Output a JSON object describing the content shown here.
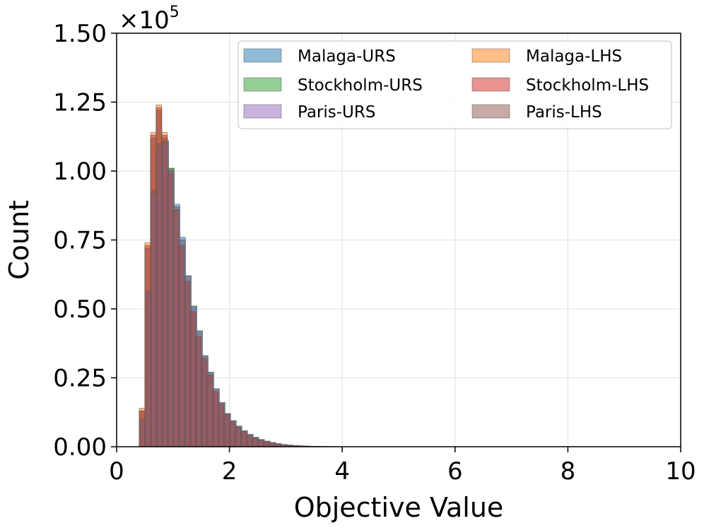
{
  "chart_data": {
    "type": "bar",
    "title": "",
    "xlabel": "Objective Value",
    "ylabel": "Count",
    "y_multiplier_base": "×10",
    "y_multiplier_exp": "5",
    "xlim": [
      0,
      10
    ],
    "ylim": [
      0,
      1.5
    ],
    "grid": true,
    "legend_position": "top-right",
    "x_ticks": [
      0,
      2,
      4,
      6,
      8,
      10
    ],
    "x_tick_labels": [
      "0",
      "2",
      "4",
      "6",
      "8",
      "10"
    ],
    "y_ticks": [
      0,
      0.25,
      0.5,
      0.75,
      1.0,
      1.25,
      1.5
    ],
    "y_tick_labels": [
      "0.00",
      "0.25",
      "0.50",
      "0.75",
      "1.00",
      "1.25",
      "1.50"
    ],
    "bin_width": 0.1,
    "series": [
      {
        "name": "Malaga-URS",
        "color": "#1f77b4",
        "offset": 0.02,
        "bin_starts": [
          0.4,
          0.5,
          0.6,
          0.7,
          0.8,
          0.9,
          1.0,
          1.1,
          1.2,
          1.3,
          1.4,
          1.5,
          1.6,
          1.7,
          1.8,
          1.9,
          2.0,
          2.1,
          2.2,
          2.3,
          2.4,
          2.5,
          2.6,
          2.7,
          2.8,
          2.9,
          3.0,
          3.1,
          3.2,
          3.3,
          3.4,
          3.5,
          3.6,
          3.7,
          3.8,
          3.9,
          4.0
        ],
        "values": [
          0.1,
          0.57,
          0.93,
          1.1,
          1.11,
          1.01,
          0.88,
          0.76,
          0.62,
          0.51,
          0.42,
          0.33,
          0.27,
          0.21,
          0.16,
          0.12,
          0.095,
          0.075,
          0.058,
          0.045,
          0.034,
          0.026,
          0.02,
          0.015,
          0.011,
          0.008,
          0.006,
          0.0045,
          0.0033,
          0.0024,
          0.0017,
          0.0012,
          0.0008,
          0.0005,
          0.0003,
          0.0002,
          0.0001
        ]
      },
      {
        "name": "Malaga-LHS",
        "color": "#ff7f0e",
        "offset": 0.0,
        "bin_starts": [
          0.4,
          0.5,
          0.6,
          0.7,
          0.8,
          0.9,
          1.0,
          1.1,
          1.2,
          1.3,
          1.4,
          1.5,
          1.6,
          1.7,
          1.8,
          1.9,
          2.0,
          2.1,
          2.2,
          2.3,
          2.4,
          2.5,
          2.6,
          2.7,
          2.8,
          2.9,
          3.0,
          3.1,
          3.2,
          3.3,
          3.4,
          3.5,
          3.6,
          3.7,
          3.8,
          3.9,
          4.0
        ],
        "values": [
          0.14,
          0.74,
          1.14,
          1.24,
          1.14,
          1.01,
          0.86,
          0.73,
          0.6,
          0.49,
          0.4,
          0.32,
          0.26,
          0.2,
          0.155,
          0.118,
          0.09,
          0.07,
          0.054,
          0.041,
          0.031,
          0.024,
          0.018,
          0.013,
          0.0095,
          0.007,
          0.005,
          0.0037,
          0.0027,
          0.0019,
          0.0013,
          0.0009,
          0.0006,
          0.0004,
          0.0003,
          0.0002,
          0.0001
        ]
      },
      {
        "name": "Stockholm-URS",
        "color": "#2ca02c",
        "offset": 0.02,
        "bin_starts": [
          0.4,
          0.5,
          0.6,
          0.7,
          0.8,
          0.9,
          1.0,
          1.1,
          1.2,
          1.3,
          1.4,
          1.5,
          1.6,
          1.7,
          1.8,
          1.9,
          2.0,
          2.1,
          2.2,
          2.3,
          2.4,
          2.5,
          2.6,
          2.7,
          2.8,
          2.9,
          3.0,
          3.1,
          3.2,
          3.3,
          3.4,
          3.5,
          3.6,
          3.7,
          3.8,
          3.9,
          4.0
        ],
        "values": [
          0.1,
          0.56,
          0.93,
          1.1,
          1.11,
          1.01,
          0.87,
          0.75,
          0.62,
          0.51,
          0.42,
          0.33,
          0.27,
          0.21,
          0.16,
          0.12,
          0.094,
          0.074,
          0.057,
          0.044,
          0.034,
          0.026,
          0.02,
          0.015,
          0.011,
          0.008,
          0.006,
          0.0044,
          0.0032,
          0.0023,
          0.0016,
          0.0011,
          0.0008,
          0.0005,
          0.0003,
          0.0002,
          0.0001
        ]
      },
      {
        "name": "Stockholm-LHS",
        "color": "#d62728",
        "offset": 0.0,
        "bin_starts": [
          0.4,
          0.5,
          0.6,
          0.7,
          0.8,
          0.9,
          1.0,
          1.1,
          1.2,
          1.3,
          1.4,
          1.5,
          1.6,
          1.7,
          1.8,
          1.9,
          2.0,
          2.1,
          2.2,
          2.3,
          2.4,
          2.5,
          2.6,
          2.7,
          2.8,
          2.9,
          3.0,
          3.1,
          3.2,
          3.3,
          3.4,
          3.5,
          3.6,
          3.7,
          3.8,
          3.9,
          4.0
        ],
        "values": [
          0.13,
          0.73,
          1.13,
          1.23,
          1.13,
          1.0,
          0.86,
          0.73,
          0.6,
          0.49,
          0.4,
          0.32,
          0.26,
          0.2,
          0.155,
          0.118,
          0.09,
          0.07,
          0.054,
          0.041,
          0.031,
          0.024,
          0.018,
          0.013,
          0.0095,
          0.007,
          0.005,
          0.0037,
          0.0027,
          0.0019,
          0.0013,
          0.0009,
          0.0006,
          0.0004,
          0.0003,
          0.0002,
          0.0001
        ]
      },
      {
        "name": "Paris-URS",
        "color": "#9467bd",
        "offset": 0.02,
        "bin_starts": [
          0.4,
          0.5,
          0.6,
          0.7,
          0.8,
          0.9,
          1.0,
          1.1,
          1.2,
          1.3,
          1.4,
          1.5,
          1.6,
          1.7,
          1.8,
          1.9,
          2.0,
          2.1,
          2.2,
          2.3,
          2.4,
          2.5,
          2.6,
          2.7,
          2.8,
          2.9,
          3.0,
          3.1,
          3.2,
          3.3,
          3.4,
          3.5,
          3.6,
          3.7,
          3.8,
          3.9,
          4.0
        ],
        "values": [
          0.1,
          0.56,
          0.92,
          1.09,
          1.1,
          1.0,
          0.87,
          0.75,
          0.62,
          0.51,
          0.42,
          0.33,
          0.27,
          0.21,
          0.16,
          0.12,
          0.094,
          0.074,
          0.057,
          0.044,
          0.034,
          0.026,
          0.02,
          0.015,
          0.011,
          0.008,
          0.006,
          0.0044,
          0.0032,
          0.0023,
          0.0016,
          0.0011,
          0.0008,
          0.0005,
          0.0003,
          0.0002,
          0.0001
        ]
      },
      {
        "name": "Paris-LHS",
        "color": "#8c564b",
        "offset": 0.0,
        "bin_starts": [
          0.4,
          0.5,
          0.6,
          0.7,
          0.8,
          0.9,
          1.0,
          1.1,
          1.2,
          1.3,
          1.4,
          1.5,
          1.6,
          1.7,
          1.8,
          1.9,
          2.0,
          2.1,
          2.2,
          2.3,
          2.4,
          2.5,
          2.6,
          2.7,
          2.8,
          2.9,
          3.0,
          3.1,
          3.2,
          3.3,
          3.4,
          3.5,
          3.6,
          3.7,
          3.8,
          3.9,
          4.0
        ],
        "values": [
          0.13,
          0.72,
          1.12,
          1.22,
          1.12,
          0.99,
          0.86,
          0.73,
          0.6,
          0.49,
          0.4,
          0.32,
          0.26,
          0.2,
          0.155,
          0.118,
          0.09,
          0.07,
          0.054,
          0.041,
          0.031,
          0.024,
          0.018,
          0.013,
          0.0095,
          0.007,
          0.005,
          0.0037,
          0.0027,
          0.0019,
          0.0013,
          0.0009,
          0.0006,
          0.0004,
          0.0003,
          0.0002,
          0.0001
        ]
      }
    ]
  }
}
